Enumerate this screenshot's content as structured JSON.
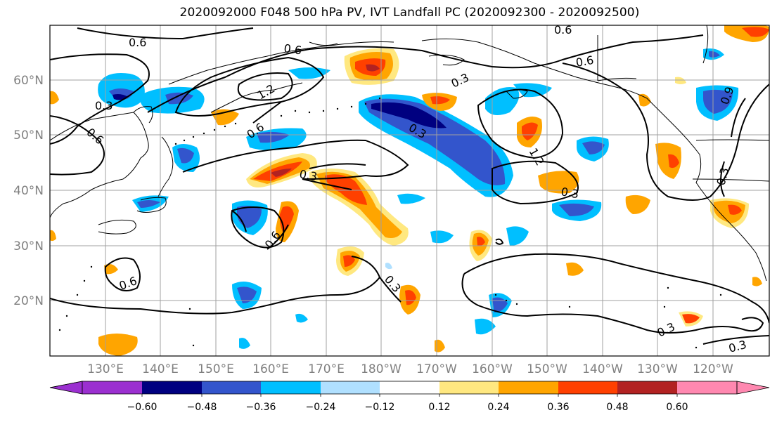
{
  "title": "2020092000 F048 500 hPa PV, IVT Landfall PC (2020092300 - 2020092500)",
  "lat_labels": [
    "60°N",
    "50°N",
    "40°N",
    "30°N",
    "20°N"
  ],
  "lon_labels": [
    "130°E",
    "140°E",
    "150°E",
    "160°E",
    "170°E",
    "180°W",
    "170°W",
    "160°W",
    "150°W",
    "140°W",
    "130°W",
    "120°W"
  ],
  "colorbar": {
    "ticks": [
      "−0.60",
      "−0.48",
      "−0.36",
      "−0.24",
      "−0.12",
      "0.12",
      "0.24",
      "0.36",
      "0.48",
      "0.60"
    ],
    "colors": [
      "#9b30d0",
      "#000080",
      "#3355cc",
      "#00bfff",
      "#b0e0ff",
      "#ffffff",
      "#ffe880",
      "#ffa500",
      "#ff4000",
      "#b22222",
      "#ff88b0"
    ]
  },
  "contour_labels": [
    "0.6",
    "0.6",
    "0.6",
    "0.6",
    "0.3",
    "0.6",
    "1.2",
    "0.6",
    "0.3",
    "0.6",
    "0.3",
    "1.2",
    "0.3",
    "0.3",
    "0.6",
    "0.3",
    "0.9",
    "0.3",
    "0.3",
    "0.3"
  ]
}
